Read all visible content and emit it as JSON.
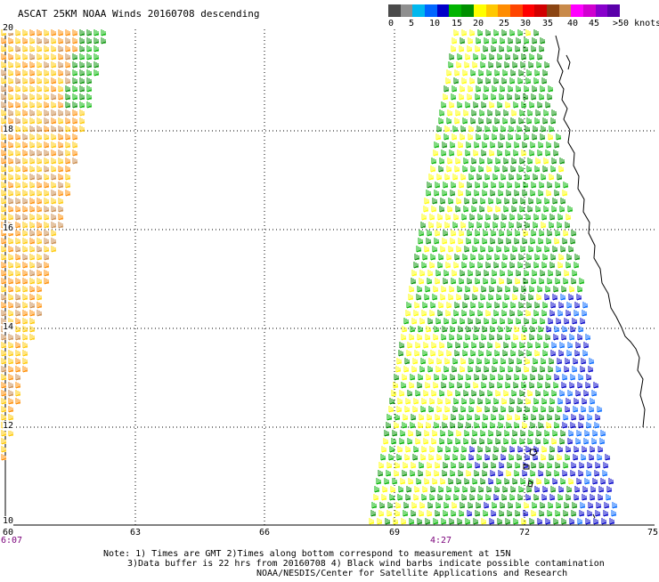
{
  "title": "ASCAT 25KM NOAA Winds 20160708 descending",
  "colorbar": {
    "colors": [
      "#4a4a4a",
      "#8f8f8f",
      "#00b8ee",
      "#0066ff",
      "#0000c8",
      "#00b400",
      "#009000",
      "#ffff00",
      "#ffc800",
      "#ff8c00",
      "#ff4500",
      "#ff0000",
      "#d20000",
      "#8b4513",
      "#c98a4a",
      "#ff00ff",
      "#d000d0",
      "#8800cc",
      "#5a00aa"
    ],
    "tick_labels": [
      "0",
      "5",
      "10",
      "15",
      "20",
      "25",
      "30",
      "35",
      "40",
      "45",
      ">50 knots"
    ]
  },
  "axes": {
    "lat_labels": [
      "20",
      "18",
      "16",
      "14",
      "12",
      "10"
    ],
    "lon_labels": [
      "60",
      "63",
      "66",
      "69",
      "72",
      "75"
    ],
    "time_labels": [
      "6:07",
      "4:27"
    ]
  },
  "notes": {
    "line1": "Note: 1) Times are GMT 2)Times along bottom correspond to measurement at 15N",
    "line2": "3)Data buffer is 22 hrs from 20160708 4) Black wind barbs indicate possible contamination",
    "line3": "NOAA/NESDIS/Center for Satellite Applications and Research"
  },
  "chart_data": {
    "type": "wind-barb-map",
    "title": "ASCAT 25KM NOAA Winds 20160708 descending",
    "lat_range": [
      10,
      20
    ],
    "lon_range": [
      60,
      75
    ],
    "grid": true,
    "colorbar_range_knots": [
      0,
      50
    ],
    "pass_times_gmt": [
      "6:07",
      "4:27"
    ]
  }
}
